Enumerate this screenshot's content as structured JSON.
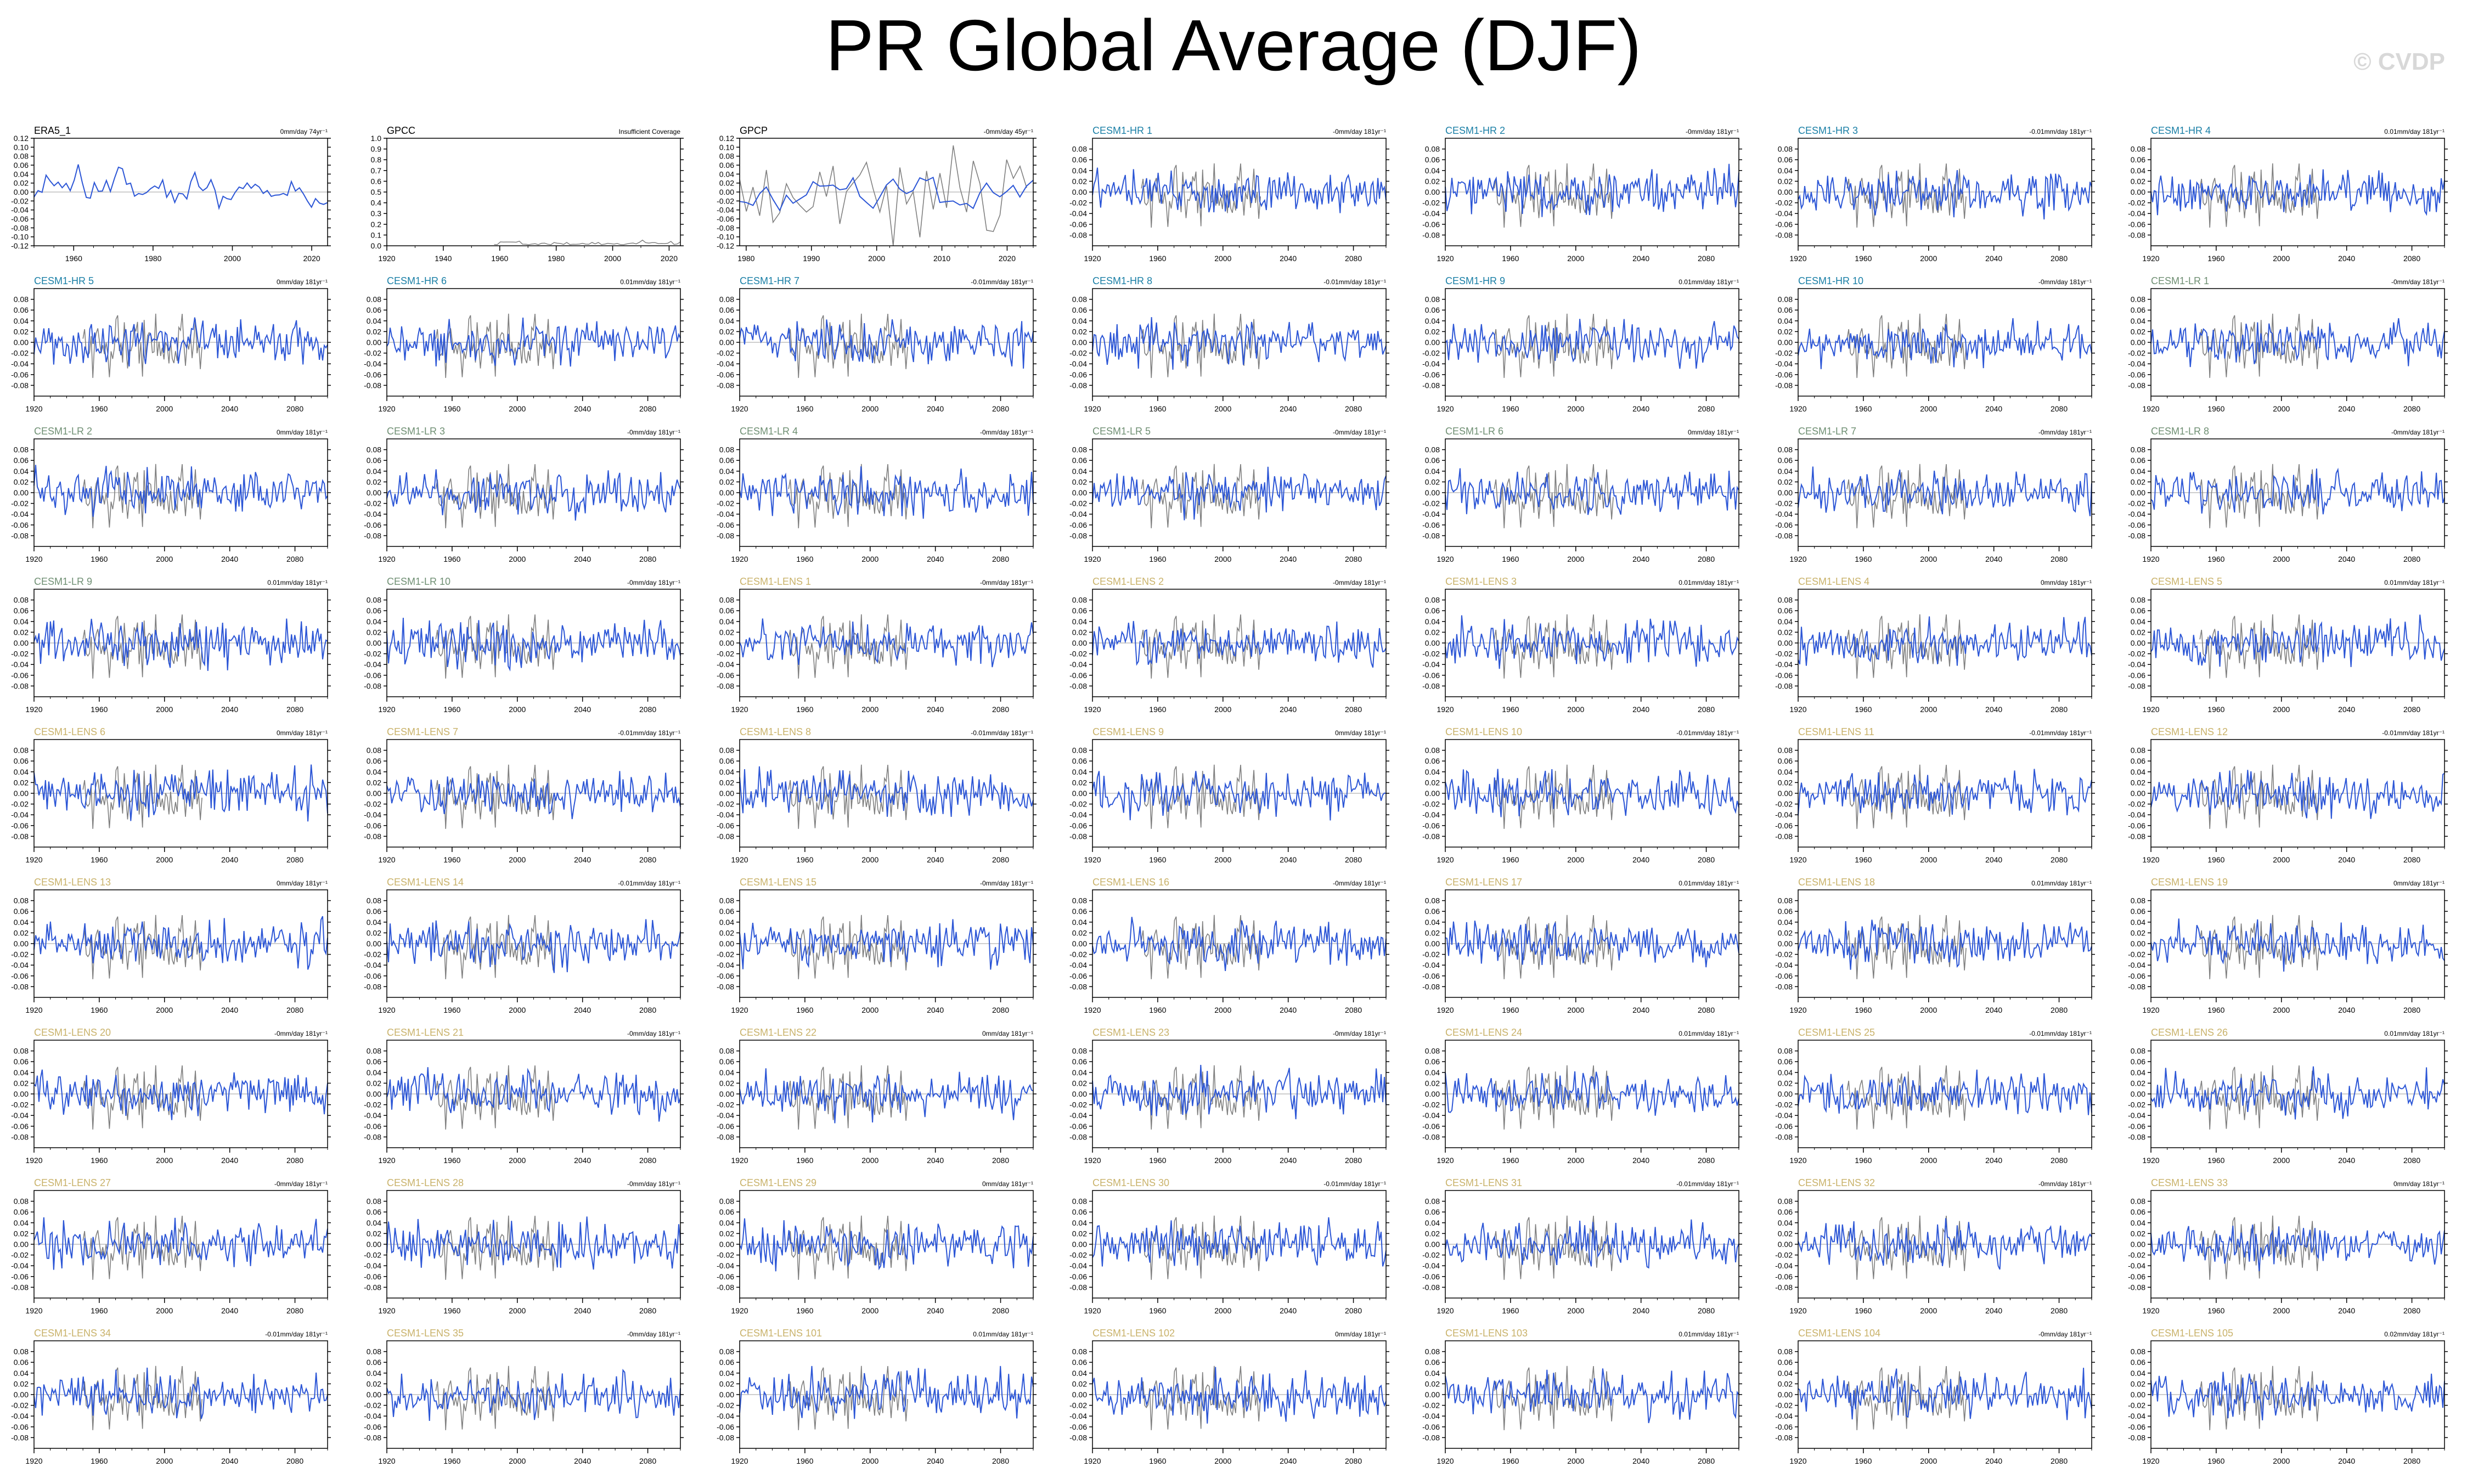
{
  "title": "PR Global Average (DJF)",
  "watermark": "© CVDP",
  "colors": {
    "obs_label": "#000000",
    "hr_label": "#1a7fa6",
    "lr_label": "#6f8f73",
    "lens_label": "#c9b26a",
    "model_line": "#2c56d6",
    "obs_line": "#808080",
    "axis": "#000000",
    "zero_line": "#bdbdbd"
  },
  "chart_data": [
    {
      "type": "line",
      "title": "ERA5_1",
      "trend": "0mm/day 74yr⁻¹",
      "label_color": "obs",
      "ylim": [
        -0.12,
        0.12
      ],
      "yticks": [
        "0.12",
        "0.10",
        "0.08",
        "0.06",
        "0.04",
        "0.02",
        "0.00",
        "-0.02",
        "-0.04",
        "-0.06",
        "-0.08",
        "-0.10",
        "-0.12"
      ],
      "xlim": [
        1950,
        2024
      ],
      "xticks": [
        "1960",
        "1980",
        "2000",
        "2020"
      ],
      "series_seed": 11,
      "amp": 0.045,
      "overlay": false
    },
    {
      "type": "line",
      "title": "GPCC",
      "trend": "Insufficient Coverage",
      "label_color": "obs",
      "ylim": [
        0.0,
        1.0
      ],
      "yticks": [
        "1.0",
        "0.9",
        "0.8",
        "0.7",
        "0.6",
        "0.5",
        "0.4",
        "0.3",
        "0.2",
        "0.1",
        "0.0"
      ],
      "xlim": [
        1920,
        2024
      ],
      "xticks": [
        "1920",
        "1940",
        "1960",
        "1980",
        "2000",
        "2020"
      ],
      "series_seed": 12,
      "amp": 0.03,
      "overlay": false,
      "gray_only": true
    },
    {
      "type": "line",
      "title": "GPCP",
      "trend": "-0mm/day 45yr⁻¹",
      "label_color": "obs",
      "ylim": [
        -0.12,
        0.12
      ],
      "yticks": [
        "0.12",
        "0.10",
        "0.08",
        "0.06",
        "0.04",
        "0.02",
        "0.00",
        "-0.02",
        "-0.04",
        "-0.06",
        "-0.08",
        "-0.10",
        "-0.12"
      ],
      "xlim": [
        1979,
        2024
      ],
      "xticks": [
        "1980",
        "1990",
        "2000",
        "2010",
        "2020"
      ],
      "series_seed": 13,
      "amp": 0.05,
      "overlay": true
    },
    {
      "type": "line",
      "title": "CESM1-HR 1",
      "trend": "-0mm/day 181yr⁻¹",
      "label_color": "hr",
      "series_seed": 101
    },
    {
      "type": "line",
      "title": "CESM1-HR 2",
      "trend": "-0mm/day 181yr⁻¹",
      "label_color": "hr",
      "series_seed": 102
    },
    {
      "type": "line",
      "title": "CESM1-HR 3",
      "trend": "-0.01mm/day 181yr⁻¹",
      "label_color": "hr",
      "series_seed": 103
    },
    {
      "type": "line",
      "title": "CESM1-HR 4",
      "trend": "0.01mm/day 181yr⁻¹",
      "label_color": "hr",
      "series_seed": 104
    },
    {
      "type": "line",
      "title": "CESM1-HR 5",
      "trend": "0mm/day 181yr⁻¹",
      "label_color": "hr",
      "series_seed": 105
    },
    {
      "type": "line",
      "title": "CESM1-HR 6",
      "trend": "0.01mm/day 181yr⁻¹",
      "label_color": "hr",
      "series_seed": 106
    },
    {
      "type": "line",
      "title": "CESM1-HR 7",
      "trend": "-0.01mm/day 181yr⁻¹",
      "label_color": "hr",
      "series_seed": 107
    },
    {
      "type": "line",
      "title": "CESM1-HR 8",
      "trend": "-0.01mm/day 181yr⁻¹",
      "label_color": "hr",
      "series_seed": 108
    },
    {
      "type": "line",
      "title": "CESM1-HR 9",
      "trend": "0.01mm/day 181yr⁻¹",
      "label_color": "hr",
      "series_seed": 109
    },
    {
      "type": "line",
      "title": "CESM1-HR 10",
      "trend": "-0mm/day 181yr⁻¹",
      "label_color": "hr",
      "series_seed": 110
    },
    {
      "type": "line",
      "title": "CESM1-LR 1",
      "trend": "-0mm/day 181yr⁻¹",
      "label_color": "lr",
      "series_seed": 201
    },
    {
      "type": "line",
      "title": "CESM1-LR 2",
      "trend": "0mm/day 181yr⁻¹",
      "label_color": "lr",
      "series_seed": 202
    },
    {
      "type": "line",
      "title": "CESM1-LR 3",
      "trend": "-0mm/day 181yr⁻¹",
      "label_color": "lr",
      "series_seed": 203
    },
    {
      "type": "line",
      "title": "CESM1-LR 4",
      "trend": "-0mm/day 181yr⁻¹",
      "label_color": "lr",
      "series_seed": 204
    },
    {
      "type": "line",
      "title": "CESM1-LR 5",
      "trend": "-0mm/day 181yr⁻¹",
      "label_color": "lr",
      "series_seed": 205
    },
    {
      "type": "line",
      "title": "CESM1-LR 6",
      "trend": "0mm/day 181yr⁻¹",
      "label_color": "lr",
      "series_seed": 206
    },
    {
      "type": "line",
      "title": "CESM1-LR 7",
      "trend": "-0mm/day 181yr⁻¹",
      "label_color": "lr",
      "series_seed": 207
    },
    {
      "type": "line",
      "title": "CESM1-LR 8",
      "trend": "-0mm/day 181yr⁻¹",
      "label_color": "lr",
      "series_seed": 208
    },
    {
      "type": "line",
      "title": "CESM1-LR 9",
      "trend": "0.01mm/day 181yr⁻¹",
      "label_color": "lr",
      "series_seed": 209
    },
    {
      "type": "line",
      "title": "CESM1-LR 10",
      "trend": "-0mm/day 181yr⁻¹",
      "label_color": "lr",
      "series_seed": 210
    },
    {
      "type": "line",
      "title": "CESM1-LENS 1",
      "trend": "-0mm/day 181yr⁻¹",
      "label_color": "lens",
      "series_seed": 301
    },
    {
      "type": "line",
      "title": "CESM1-LENS 2",
      "trend": "-0mm/day 181yr⁻¹",
      "label_color": "lens",
      "series_seed": 302
    },
    {
      "type": "line",
      "title": "CESM1-LENS 3",
      "trend": "0.01mm/day 181yr⁻¹",
      "label_color": "lens",
      "series_seed": 303
    },
    {
      "type": "line",
      "title": "CESM1-LENS 4",
      "trend": "0mm/day 181yr⁻¹",
      "label_color": "lens",
      "series_seed": 304
    },
    {
      "type": "line",
      "title": "CESM1-LENS 5",
      "trend": "0.01mm/day 181yr⁻¹",
      "label_color": "lens",
      "series_seed": 305
    },
    {
      "type": "line",
      "title": "CESM1-LENS 6",
      "trend": "0mm/day 181yr⁻¹",
      "label_color": "lens",
      "series_seed": 306
    },
    {
      "type": "line",
      "title": "CESM1-LENS 7",
      "trend": "-0.01mm/day 181yr⁻¹",
      "label_color": "lens",
      "series_seed": 307
    },
    {
      "type": "line",
      "title": "CESM1-LENS 8",
      "trend": "-0.01mm/day 181yr⁻¹",
      "label_color": "lens",
      "series_seed": 308
    },
    {
      "type": "line",
      "title": "CESM1-LENS 9",
      "trend": "0mm/day 181yr⁻¹",
      "label_color": "lens",
      "series_seed": 309
    },
    {
      "type": "line",
      "title": "CESM1-LENS 10",
      "trend": "-0.01mm/day 181yr⁻¹",
      "label_color": "lens",
      "series_seed": 310
    },
    {
      "type": "line",
      "title": "CESM1-LENS 11",
      "trend": "-0.01mm/day 181yr⁻¹",
      "label_color": "lens",
      "series_seed": 311
    },
    {
      "type": "line",
      "title": "CESM1-LENS 12",
      "trend": "-0.01mm/day 181yr⁻¹",
      "label_color": "lens",
      "series_seed": 312
    },
    {
      "type": "line",
      "title": "CESM1-LENS 13",
      "trend": "0mm/day 181yr⁻¹",
      "label_color": "lens",
      "series_seed": 313
    },
    {
      "type": "line",
      "title": "CESM1-LENS 14",
      "trend": "-0.01mm/day 181yr⁻¹",
      "label_color": "lens",
      "series_seed": 314
    },
    {
      "type": "line",
      "title": "CESM1-LENS 15",
      "trend": "-0mm/day 181yr⁻¹",
      "label_color": "lens",
      "series_seed": 315
    },
    {
      "type": "line",
      "title": "CESM1-LENS 16",
      "trend": "-0mm/day 181yr⁻¹",
      "label_color": "lens",
      "series_seed": 316
    },
    {
      "type": "line",
      "title": "CESM1-LENS 17",
      "trend": "0.01mm/day 181yr⁻¹",
      "label_color": "lens",
      "series_seed": 317
    },
    {
      "type": "line",
      "title": "CESM1-LENS 18",
      "trend": "0.01mm/day 181yr⁻¹",
      "label_color": "lens",
      "series_seed": 318
    },
    {
      "type": "line",
      "title": "CESM1-LENS 19",
      "trend": "0mm/day 181yr⁻¹",
      "label_color": "lens",
      "series_seed": 319
    },
    {
      "type": "line",
      "title": "CESM1-LENS 20",
      "trend": "-0mm/day 181yr⁻¹",
      "label_color": "lens",
      "series_seed": 320
    },
    {
      "type": "line",
      "title": "CESM1-LENS 21",
      "trend": "-0mm/day 181yr⁻¹",
      "label_color": "lens",
      "series_seed": 321
    },
    {
      "type": "line",
      "title": "CESM1-LENS 22",
      "trend": "0mm/day 181yr⁻¹",
      "label_color": "lens",
      "series_seed": 322
    },
    {
      "type": "line",
      "title": "CESM1-LENS 23",
      "trend": "-0mm/day 181yr⁻¹",
      "label_color": "lens",
      "series_seed": 323
    },
    {
      "type": "line",
      "title": "CESM1-LENS 24",
      "trend": "0.01mm/day 181yr⁻¹",
      "label_color": "lens",
      "series_seed": 324
    },
    {
      "type": "line",
      "title": "CESM1-LENS 25",
      "trend": "-0.01mm/day 181yr⁻¹",
      "label_color": "lens",
      "series_seed": 325
    },
    {
      "type": "line",
      "title": "CESM1-LENS 26",
      "trend": "0.01mm/day 181yr⁻¹",
      "label_color": "lens",
      "series_seed": 326
    },
    {
      "type": "line",
      "title": "CESM1-LENS 27",
      "trend": "-0mm/day 181yr⁻¹",
      "label_color": "lens",
      "series_seed": 327
    },
    {
      "type": "line",
      "title": "CESM1-LENS 28",
      "trend": "-0mm/day 181yr⁻¹",
      "label_color": "lens",
      "series_seed": 328
    },
    {
      "type": "line",
      "title": "CESM1-LENS 29",
      "trend": "0mm/day 181yr⁻¹",
      "label_color": "lens",
      "series_seed": 329
    },
    {
      "type": "line",
      "title": "CESM1-LENS 30",
      "trend": "-0.01mm/day 181yr⁻¹",
      "label_color": "lens",
      "series_seed": 330
    },
    {
      "type": "line",
      "title": "CESM1-LENS 31",
      "trend": "-0.01mm/day 181yr⁻¹",
      "label_color": "lens",
      "series_seed": 331
    },
    {
      "type": "line",
      "title": "CESM1-LENS 32",
      "trend": "-0mm/day 181yr⁻¹",
      "label_color": "lens",
      "series_seed": 332
    },
    {
      "type": "line",
      "title": "CESM1-LENS 33",
      "trend": "0mm/day 181yr⁻¹",
      "label_color": "lens",
      "series_seed": 333
    },
    {
      "type": "line",
      "title": "CESM1-LENS 34",
      "trend": "-0.01mm/day 181yr⁻¹",
      "label_color": "lens",
      "series_seed": 334
    },
    {
      "type": "line",
      "title": "CESM1-LENS 35",
      "trend": "-0mm/day 181yr⁻¹",
      "label_color": "lens",
      "series_seed": 335
    },
    {
      "type": "line",
      "title": "CESM1-LENS 101",
      "trend": "0.01mm/day 181yr⁻¹",
      "label_color": "lens",
      "series_seed": 401
    },
    {
      "type": "line",
      "title": "CESM1-LENS 102",
      "trend": "0mm/day 181yr⁻¹",
      "label_color": "lens",
      "series_seed": 402
    },
    {
      "type": "line",
      "title": "CESM1-LENS 103",
      "trend": "0.01mm/day 181yr⁻¹",
      "label_color": "lens",
      "series_seed": 403
    },
    {
      "type": "line",
      "title": "CESM1-LENS 104",
      "trend": "-0mm/day 181yr⁻¹",
      "label_color": "lens",
      "series_seed": 404
    },
    {
      "type": "line",
      "title": "CESM1-LENS 105",
      "trend": "0.02mm/day 181yr⁻¹",
      "label_color": "lens",
      "series_seed": 405
    }
  ],
  "model_defaults": {
    "ylim": [
      -0.1,
      0.1
    ],
    "yticks": [
      "0.08",
      "0.06",
      "0.04",
      "0.02",
      "0.00",
      "-0.02",
      "-0.04",
      "-0.06",
      "-0.08"
    ],
    "xlim": [
      1920,
      2100
    ],
    "xticks": [
      "1920",
      "1960",
      "2000",
      "2040",
      "2080"
    ],
    "amp": 0.03,
    "overlay": true
  }
}
